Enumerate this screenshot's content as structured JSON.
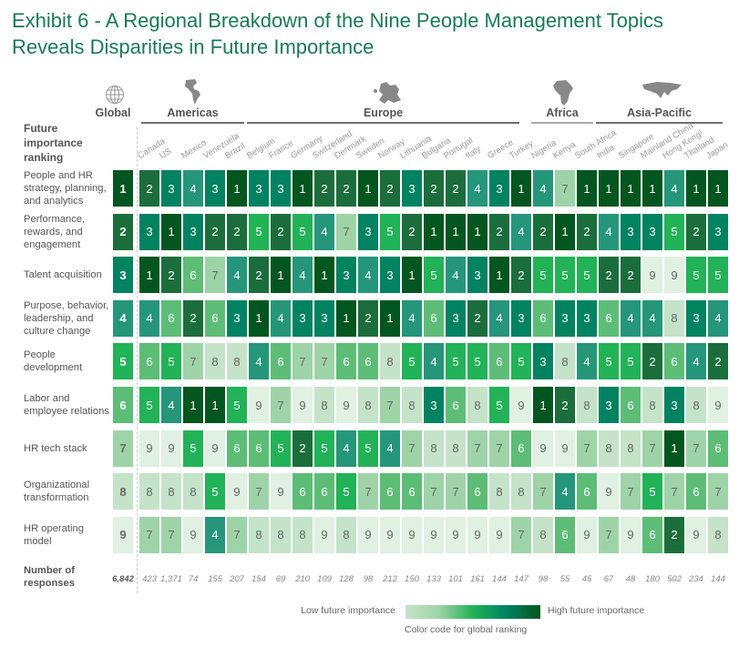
{
  "title_line1": "Exhibit 6 - A Regional Breakdown of the Nine People Management Topics",
  "title_line2": "Reveals Disparities in Future Importance",
  "chart_data": {
    "type": "heatmap",
    "row_header": "Future importance ranking",
    "global_label": "Global",
    "regions": [
      {
        "name": "Americas",
        "icon": "americas-map-icon",
        "countries": [
          "Canada",
          "US",
          "Mexico",
          "Venezuela",
          "Brazil"
        ]
      },
      {
        "name": "Europe",
        "icon": "europe-map-icon",
        "countries": [
          "Belgium",
          "France",
          "Germany",
          "Switzerland",
          "Denmark",
          "Sweden",
          "Norway",
          "Lithuania",
          "Bulgaria",
          "Portugal",
          "Italy",
          "Greece",
          "Turkey"
        ]
      },
      {
        "name": "Africa",
        "icon": "africa-map-icon",
        "countries": [
          "Nigeria",
          "Kenya",
          "South Africa"
        ]
      },
      {
        "name": "Asia-Pacific",
        "icon": "asia-map-icon",
        "countries": [
          "India",
          "Singapore",
          "Mainland China",
          "Hong Kong¹",
          "Thailand",
          "Japan"
        ]
      }
    ],
    "rows": [
      {
        "label": "People and HR strategy, planning, and analytics",
        "global": 1,
        "values": [
          2,
          3,
          4,
          3,
          1,
          3,
          3,
          1,
          2,
          2,
          1,
          2,
          3,
          2,
          2,
          4,
          3,
          1,
          4,
          7,
          1,
          1,
          1,
          1,
          4,
          1,
          1
        ]
      },
      {
        "label": "Performance, rewards, and engagement",
        "global": 2,
        "values": [
          3,
          1,
          3,
          2,
          2,
          5,
          2,
          5,
          4,
          7,
          3,
          5,
          2,
          1,
          1,
          1,
          2,
          4,
          2,
          1,
          2,
          4,
          3,
          3,
          5,
          2,
          3
        ]
      },
      {
        "label": "Talent acquisition",
        "global": 3,
        "values": [
          1,
          2,
          6,
          7,
          4,
          2,
          1,
          4,
          1,
          3,
          4,
          3,
          1,
          5,
          4,
          3,
          1,
          2,
          5,
          5,
          5,
          2,
          2,
          9,
          9,
          5,
          5
        ]
      },
      {
        "label": "Purpose, behavior, leadership, and culture change",
        "global": 4,
        "values": [
          4,
          6,
          2,
          6,
          3,
          1,
          4,
          3,
          3,
          1,
          2,
          1,
          4,
          6,
          3,
          2,
          4,
          3,
          6,
          3,
          3,
          6,
          4,
          4,
          8,
          3,
          4
        ]
      },
      {
        "label": "People development",
        "global": 5,
        "values": [
          6,
          5,
          7,
          8,
          8,
          4,
          6,
          7,
          7,
          6,
          6,
          8,
          5,
          4,
          5,
          5,
          6,
          5,
          3,
          8,
          4,
          5,
          5,
          2,
          6,
          4,
          2
        ]
      },
      {
        "label": "Labor and employee relations",
        "global": 6,
        "values": [
          5,
          4,
          1,
          1,
          5,
          9,
          7,
          9,
          8,
          9,
          8,
          7,
          8,
          3,
          6,
          8,
          5,
          9,
          1,
          2,
          8,
          3,
          6,
          8,
          3,
          8,
          9
        ]
      },
      {
        "label": "HR tech stack",
        "global": 7,
        "values": [
          9,
          9,
          5,
          9,
          6,
          6,
          5,
          2,
          5,
          4,
          5,
          4,
          7,
          8,
          8,
          7,
          7,
          6,
          9,
          9,
          7,
          8,
          8,
          7,
          1,
          7,
          6
        ]
      },
      {
        "label": "Organizational transformation",
        "global": 8,
        "values": [
          8,
          8,
          8,
          5,
          9,
          7,
          9,
          6,
          6,
          5,
          7,
          6,
          6,
          7,
          7,
          6,
          8,
          8,
          7,
          4,
          6,
          9,
          7,
          5,
          7,
          6,
          7
        ]
      },
      {
        "label": "HR operating model",
        "global": 9,
        "values": [
          7,
          7,
          9,
          4,
          7,
          8,
          8,
          8,
          9,
          8,
          9,
          9,
          9,
          9,
          9,
          9,
          9,
          7,
          8,
          6,
          9,
          7,
          9,
          6,
          2,
          9,
          8
        ]
      }
    ],
    "responses_label": "Number of responses",
    "responses_global": "6,842",
    "responses": [
      "423",
      "1,371",
      "74",
      "155",
      "207",
      "154",
      "69",
      "210",
      "109",
      "128",
      "98",
      "212",
      "150",
      "133",
      "101",
      "161",
      "144",
      "147",
      "98",
      "55",
      "45",
      "67",
      "48",
      "180",
      "502",
      "234",
      "144"
    ],
    "colors": {
      "1": "#03561f",
      "2": "#1b6e3c",
      "3": "#018261",
      "4": "#25967a",
      "5": "#22b257",
      "6": "#5dbd77",
      "7": "#9ed3a8",
      "8": "#c4e3c9",
      "9": "#e0f0e1"
    },
    "legend": {
      "low": "Low future importance",
      "high": "High future importance",
      "caption": "Color code for global ranking"
    }
  }
}
